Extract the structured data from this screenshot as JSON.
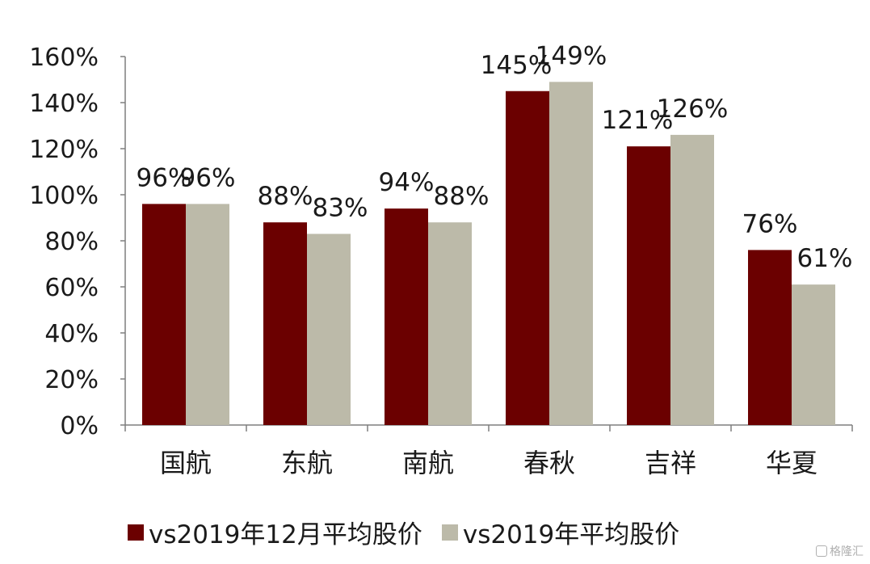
{
  "chart_data": {
    "type": "bar",
    "categories": [
      "国航",
      "东航",
      "南航",
      "春秋",
      "吉祥",
      "华夏"
    ],
    "series": [
      {
        "name": "vs2019年12月平均股价",
        "values": [
          96,
          88,
          94,
          145,
          121,
          76
        ],
        "labels": [
          "96%",
          "88%",
          "94%",
          "145%",
          "121%",
          "76%"
        ],
        "color": "#6b0000"
      },
      {
        "name": "vs2019年平均股价",
        "values": [
          96,
          83,
          88,
          149,
          126,
          61
        ],
        "labels": [
          "96%",
          "83%",
          "88%",
          "149%",
          "126%",
          "61%"
        ],
        "color": "#bcbaa9"
      }
    ],
    "yticks": [
      "0%",
      "20%",
      "40%",
      "60%",
      "80%",
      "100%",
      "120%",
      "140%",
      "160%"
    ],
    "ylim": [
      0,
      160
    ],
    "grid": false,
    "legend_position": "bottom"
  },
  "watermark": {
    "text": "格隆汇",
    "icon": "watermark-logo-icon"
  }
}
